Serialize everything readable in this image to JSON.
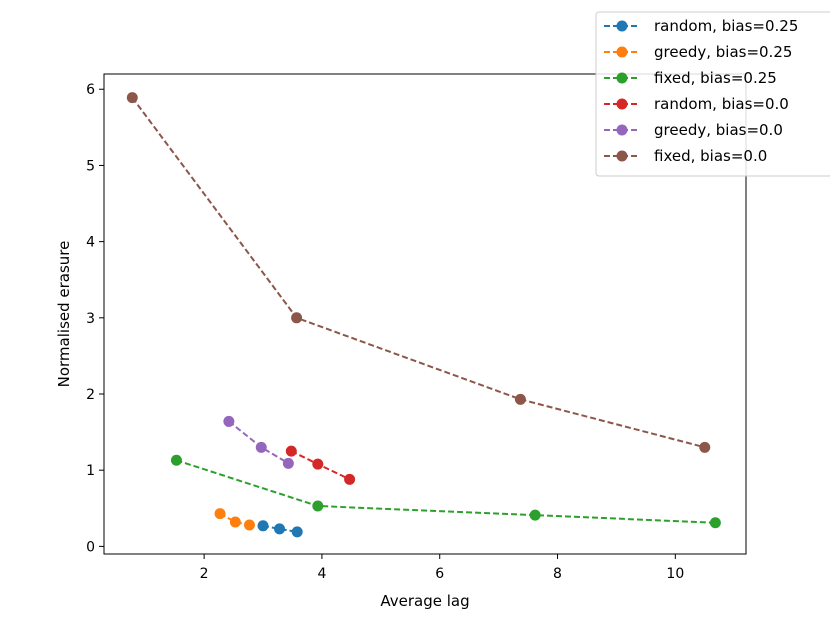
{
  "chart_data": {
    "type": "line",
    "title": "",
    "xlabel": "Average lag",
    "ylabel": "Normalised erasure",
    "xlim": [
      0.3,
      11.2
    ],
    "ylim": [
      -0.1,
      6.2
    ],
    "xticks": [
      2,
      4,
      6,
      8,
      10
    ],
    "yticks": [
      0,
      1,
      2,
      3,
      4,
      5,
      6
    ],
    "grid": false,
    "legend_position": "top-right",
    "series": [
      {
        "name": "random, bias=0.25",
        "color": "#1f77b4",
        "x": [
          3.0,
          3.28,
          3.58
        ],
        "y": [
          0.27,
          0.23,
          0.19
        ]
      },
      {
        "name": "greedy, bias=0.25",
        "color": "#ff7f0e",
        "x": [
          2.27,
          2.53,
          2.77
        ],
        "y": [
          0.43,
          0.32,
          0.28
        ]
      },
      {
        "name": "fixed, bias=0.25",
        "color": "#2ca02c",
        "x": [
          1.53,
          3.93,
          7.62,
          10.68
        ],
        "y": [
          1.13,
          0.53,
          0.41,
          0.31
        ]
      },
      {
        "name": "random, bias=0.0",
        "color": "#d62728",
        "x": [
          3.48,
          3.93,
          4.47
        ],
        "y": [
          1.25,
          1.08,
          0.88
        ]
      },
      {
        "name": "greedy, bias=0.0",
        "color": "#9467bd",
        "x": [
          2.42,
          2.97,
          3.43
        ],
        "y": [
          1.64,
          1.3,
          1.09
        ]
      },
      {
        "name": "fixed, bias=0.0",
        "color": "#8c564b",
        "x": [
          0.78,
          3.57,
          7.37,
          10.5
        ],
        "y": [
          5.89,
          3.0,
          1.93,
          1.3
        ]
      }
    ]
  }
}
